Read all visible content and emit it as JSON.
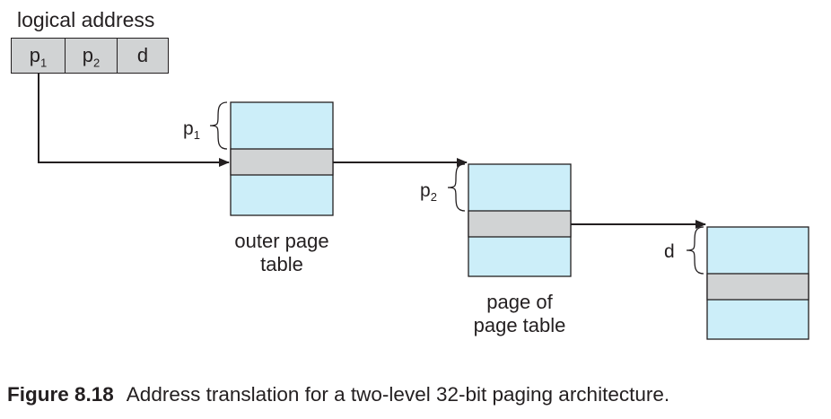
{
  "logical_address": {
    "title": "logical address",
    "fields": [
      "p1",
      "p2",
      "d"
    ]
  },
  "offsets": {
    "p1": "p1",
    "p2": "p2",
    "d": "d"
  },
  "tables": {
    "outer": [
      "outer page",
      "table"
    ],
    "page_of_page_table": [
      "page of",
      "page table"
    ]
  },
  "caption": {
    "figure": "Figure 8.18",
    "text": "Address translation for a two-level 32-bit paging architecture."
  },
  "colors": {
    "table_fill": "#cceef9",
    "entry_fill": "#d1d3d4",
    "stroke": "#231f20"
  }
}
